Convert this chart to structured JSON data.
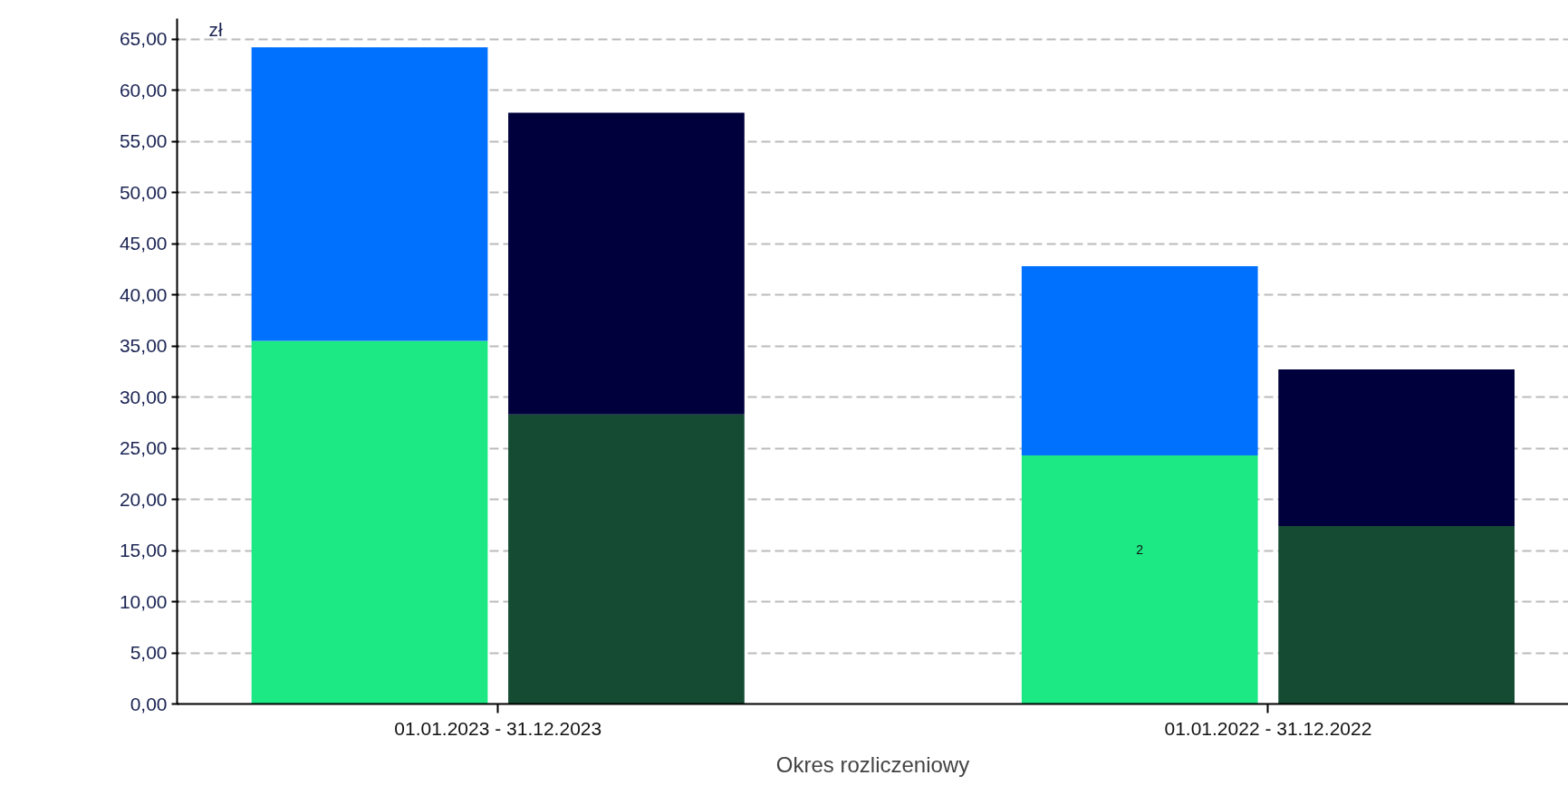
{
  "chart_data": {
    "type": "bar",
    "stacked": true,
    "xlabel": "Okres rozliczeniowy",
    "ylabel": "zł",
    "categories": [
      null,
      "01.01.2023 - 31.12.2023",
      null,
      null,
      null,
      null,
      null,
      "01.01.2022 - 31.12.2022",
      null
    ],
    "series": [
      {
        "color": "#1ce884",
        "values": [
          35.5,
          null,
          null,
          null,
          null,
          null,
          24.3,
          null,
          null
        ]
      },
      {
        "color": "#0070ff",
        "values": [
          28.7,
          null,
          null,
          null,
          null,
          null,
          18.5,
          null,
          null
        ]
      },
      {
        "color": "#154b33",
        "values": [
          null,
          null,
          28.3,
          null,
          null,
          null,
          null,
          null,
          17.4
        ]
      },
      {
        "color": "#00003c",
        "values": [
          null,
          null,
          29.5,
          null,
          null,
          null,
          null,
          null,
          15.3
        ]
      }
    ],
    "ylim": [
      0,
      67
    ],
    "yticks": [
      {
        "value": 0,
        "label": "0,00"
      },
      {
        "value": 5,
        "label": "5,00"
      },
      {
        "value": 10,
        "label": "10,00"
      },
      {
        "value": 15,
        "label": "15,00"
      },
      {
        "value": 20,
        "label": "20,00"
      },
      {
        "value": 25,
        "label": "25,00"
      },
      {
        "value": 30,
        "label": "30,00"
      },
      {
        "value": 35,
        "label": "35,00"
      },
      {
        "value": 40,
        "label": "40,00"
      },
      {
        "value": 45,
        "label": "45,00"
      },
      {
        "value": 50,
        "label": "50,00"
      },
      {
        "value": 55,
        "label": "55,00"
      },
      {
        "value": 60,
        "label": "60,00"
      },
      {
        "value": 65,
        "label": "65,00"
      }
    ],
    "grid": "y",
    "annotations": [
      "2"
    ]
  }
}
